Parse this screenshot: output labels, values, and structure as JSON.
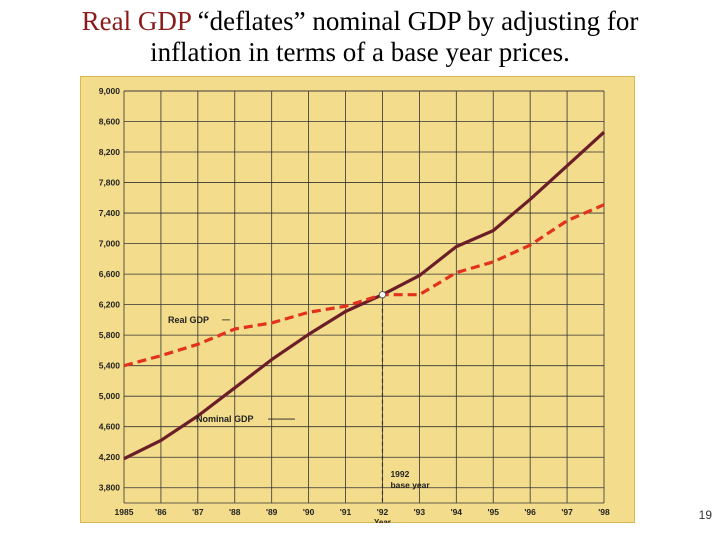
{
  "slide": {
    "title_line1_accent": "Real GDP",
    "title_line1_rest": " “deflates” nominal GDP by adjusting for",
    "title_line2": "inflation in terms of a base year prices.",
    "page_number": "19"
  },
  "colors": {
    "chart_bg": "#f3dc8b",
    "chart_edge": "#d9b84d",
    "grid": "#333333",
    "nominal_line": "#6b1d28",
    "real_line": "#e2321e",
    "base_year_marker": "#333333"
  },
  "chart_data": {
    "type": "line",
    "title": "",
    "xlabel": "Year",
    "ylabel": "",
    "x": [
      "1985",
      "'86",
      "'87",
      "'88",
      "'89",
      "'90",
      "'91",
      "'92",
      "'93",
      "'94",
      "'95",
      "'96",
      "'97",
      "'98"
    ],
    "ylim": [
      3600,
      9000
    ],
    "yticks": [
      3800,
      4200,
      4600,
      5000,
      5400,
      5800,
      6200,
      6600,
      7000,
      7400,
      7800,
      8200,
      8600,
      9000
    ],
    "ytick_labels": [
      "3,800",
      "4,200",
      "4,600",
      "5,000",
      "5,400",
      "5,800",
      "6,200",
      "6,600",
      "7,000",
      "7,400",
      "7,800",
      "8,200",
      "8,600",
      "9,000"
    ],
    "grid": true,
    "series": [
      {
        "name": "Nominal GDP",
        "style": "solid",
        "values": [
          4180,
          4420,
          4740,
          5110,
          5480,
          5810,
          6110,
          6330,
          6580,
          6960,
          7170,
          7580,
          8020,
          8460
        ]
      },
      {
        "name": "Real GDP",
        "style": "dashed",
        "values": [
          5400,
          5530,
          5680,
          5880,
          5960,
          6100,
          6180,
          6330,
          6330,
          6620,
          6760,
          6980,
          7300,
          7510
        ]
      }
    ],
    "annotations": [
      {
        "text": "1992 base year",
        "line1": "1992",
        "line2": "base year",
        "x_index": 7,
        "value": 6330
      }
    ]
  }
}
